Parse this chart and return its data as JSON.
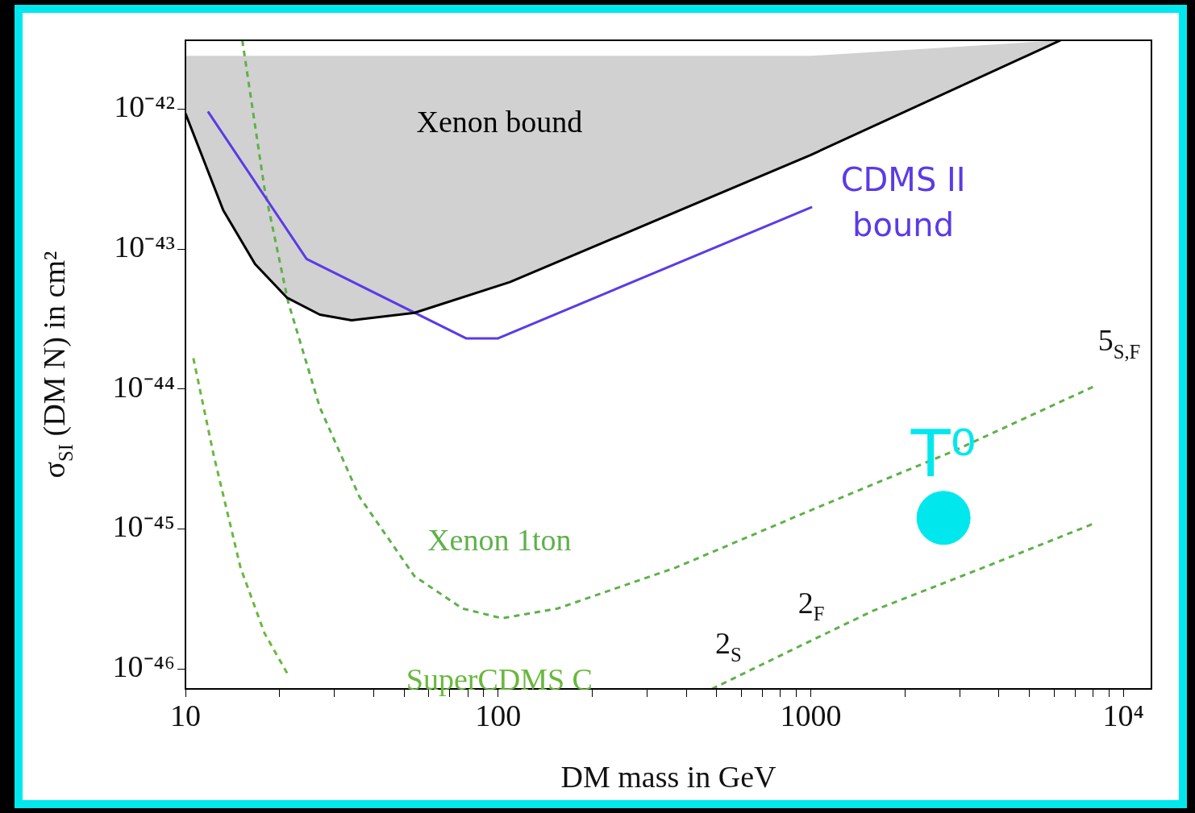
{
  "chart_data": {
    "type": "line",
    "xlabel": "DM mass in GeV",
    "ylabel": "σ$_{SI}$ (DM N) in cm²",
    "log": "xy",
    "grid": false,
    "legend": false,
    "marker": "none",
    "xlim": [
      10,
      12300
    ],
    "ylim": [
      7.2e-47,
      3.1e-42
    ],
    "xticks": [
      {
        "value": 10,
        "label": "10"
      },
      {
        "value": 20,
        "label": null
      },
      {
        "value": 30,
        "label": null
      },
      {
        "value": 40,
        "label": null
      },
      {
        "value": 50,
        "label": null
      },
      {
        "value": 60,
        "label": null
      },
      {
        "value": 70,
        "label": null
      },
      {
        "value": 80,
        "label": null
      },
      {
        "value": 90,
        "label": null
      },
      {
        "value": 100,
        "label": "100"
      },
      {
        "value": 200,
        "label": null
      },
      {
        "value": 300,
        "label": null
      },
      {
        "value": 400,
        "label": null
      },
      {
        "value": 500,
        "label": null
      },
      {
        "value": 600,
        "label": null
      },
      {
        "value": 700,
        "label": null
      },
      {
        "value": 800,
        "label": null
      },
      {
        "value": 900,
        "label": null
      },
      {
        "value": 1000,
        "label": "1000"
      },
      {
        "value": 2000,
        "label": null
      },
      {
        "value": 3000,
        "label": null
      },
      {
        "value": 4000,
        "label": null
      },
      {
        "value": 5000,
        "label": null
      },
      {
        "value": 6000,
        "label": null
      },
      {
        "value": 7000,
        "label": null
      },
      {
        "value": 8000,
        "label": null
      },
      {
        "value": 9000,
        "label": null
      },
      {
        "value": 10000,
        "label": "10⁴"
      }
    ],
    "yticks": [
      {
        "value": 1e-46,
        "label": "10⁻⁴⁶"
      },
      {
        "value": 1e-45,
        "label": "10⁻⁴⁵"
      },
      {
        "value": 1e-44,
        "label": "10⁻⁴⁴"
      },
      {
        "value": 1e-43,
        "label": "10⁻⁴³"
      },
      {
        "value": 1e-42,
        "label": "10⁻⁴²"
      }
    ],
    "series": [
      {
        "type": "line",
        "name": "Xenon bound",
        "color": "#000000",
        "x": [
          10,
          13.2,
          16.7,
          21.1,
          26.9,
          34,
          54,
          109,
          1000,
          6300
        ],
        "values": [
          9.3e-43,
          1.9e-43,
          7.8e-44,
          4.5e-44,
          3.4e-44,
          3.1e-44,
          3.5e-44,
          5.8e-44,
          4.7e-43,
          3.1e-42
        ],
        "lower": [
          9.3e-43,
          1.9e-43,
          7.8e-44,
          4.5e-44,
          3.4e-44,
          3.1e-44,
          3.5e-44,
          5.8e-44,
          4.7e-43,
          3.1e-42
        ],
        "upper": [
          2.4e-42,
          2.4e-42,
          2.4e-42,
          2.4e-42,
          2.4e-42,
          2.4e-42,
          2.4e-42,
          2.4e-42,
          2.4e-42,
          3.1e-42
        ]
      },
      {
        "type": "line",
        "name": "CDMS II bound",
        "color": "#5b3be6",
        "x": [
          11.8,
          24.4,
          79,
          100,
          1010
        ],
        "values": [
          9.6e-43,
          8.5e-44,
          2.3e-44,
          2.3e-44,
          2e-43
        ]
      },
      {
        "type": "line",
        "name": "Xenon 1ton",
        "line_style": "dashed",
        "color": "#5fb04a",
        "x": [
          15.2,
          17.9,
          21.3,
          26.9,
          36,
          54,
          77,
          103,
          155,
          370,
          1000,
          2860,
          8100
        ],
        "values": [
          3.1e-42,
          2.7e-43,
          4.2e-44,
          7.4e-45,
          1.7e-45,
          4.6e-46,
          2.7e-46,
          2.3e-46,
          2.7e-46,
          5.3e-46,
          1.36e-45,
          3.6e-45,
          1.05e-44
        ]
      },
      {
        "type": "line",
        "name": "SuperCDMS C",
        "line_style": "dashed",
        "color": "#6ab83e",
        "x": [
          10.6,
          12.3,
          15,
          17.9,
          21.4
        ],
        "values": [
          1.66e-44,
          3.4e-45,
          5.3e-46,
          1.8e-46,
          8.9e-47
        ]
      },
      {
        "type": "line",
        "line_style": "dashed",
        "color": "#5fb04a",
        "x": [
          483,
          890,
          1580,
          3800,
          8100
        ],
        "values": [
          7.2e-47,
          1.4e-46,
          2.6e-46,
          5.6e-46,
          1.1e-45
        ]
      },
      {
        "type": "scatter",
        "name": "T⁰",
        "marker": "circle",
        "color": "#00e8ee",
        "x": [
          2660
        ],
        "values": [
          1.2e-45
        ]
      }
    ],
    "annotations": [
      {
        "text": "2$_{S}$",
        "x": 483,
        "y": 7.2e-47
      },
      {
        "text": "2$_{F}$",
        "x": 890,
        "y": 1.4e-46
      },
      {
        "text": "5$_{S,F}$",
        "x": 8100,
        "y": 1.05e-44
      }
    ]
  }
}
